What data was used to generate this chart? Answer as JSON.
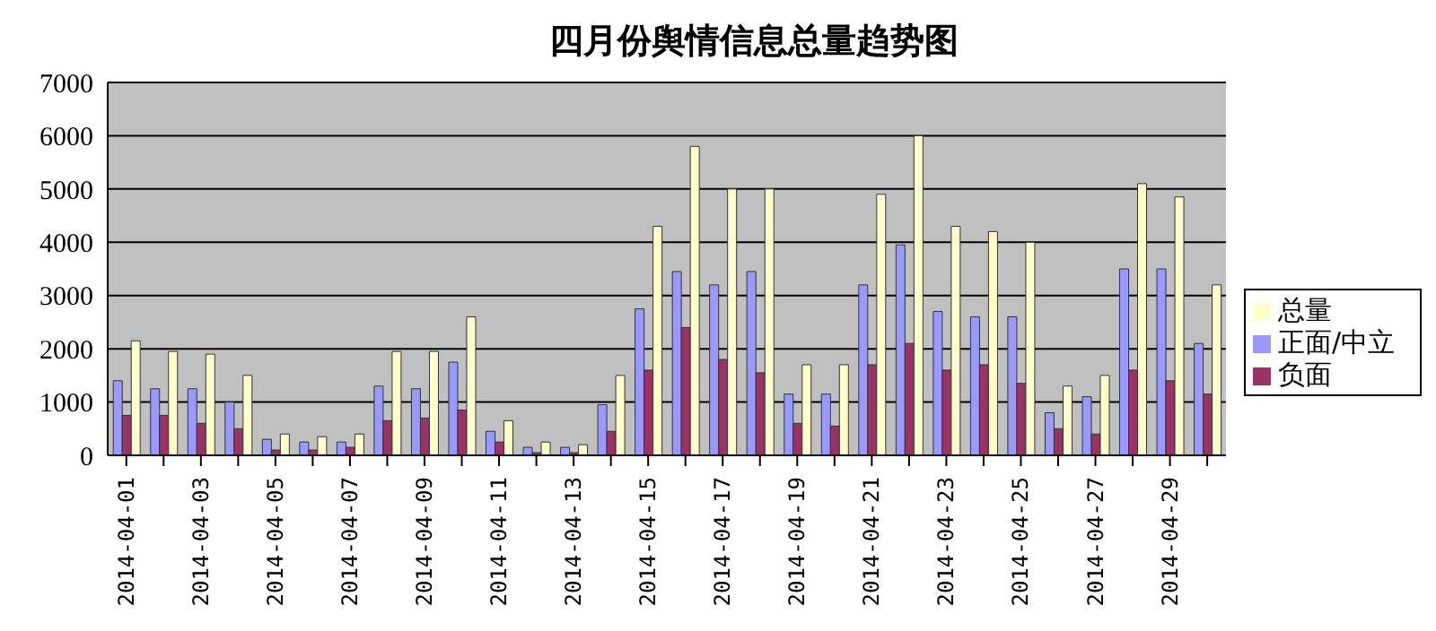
{
  "chart_data": {
    "type": "bar",
    "title": "四月份舆情信息总量趋势图",
    "categories": [
      "2014-04-01",
      null,
      "2014-04-03",
      null,
      "2014-04-05",
      null,
      "2014-04-07",
      null,
      "2014-04-09",
      null,
      "2014-04-11",
      null,
      "2014-04-13",
      null,
      "2014-04-15",
      null,
      "2014-04-17",
      null,
      "2014-04-19",
      null,
      "2014-04-21",
      null,
      "2014-04-23",
      null,
      "2014-04-25",
      null,
      "2014-04-27",
      null,
      "2014-04-29",
      null
    ],
    "series": [
      {
        "name": "正面/中立",
        "color": "#9999ff",
        "values": [
          1400,
          1250,
          1250,
          1000,
          300,
          250,
          250,
          1300,
          1250,
          1750,
          450,
          150,
          150,
          950,
          2750,
          3450,
          3200,
          3450,
          1150,
          1150,
          3200,
          3950,
          2700,
          2600,
          2600,
          800,
          1100,
          3500,
          3500,
          2100
        ]
      },
      {
        "name": "负面",
        "color": "#993366",
        "values": [
          750,
          750,
          600,
          500,
          100,
          100,
          150,
          650,
          700,
          850,
          250,
          50,
          50,
          450,
          1600,
          2400,
          1800,
          1550,
          600,
          550,
          1700,
          2100,
          1600,
          1700,
          1350,
          500,
          400,
          1600,
          1400,
          1150
        ]
      },
      {
        "name": "总量",
        "color": "#ffffcc",
        "values": [
          2150,
          1950,
          1900,
          1500,
          400,
          350,
          400,
          1950,
          1950,
          2600,
          650,
          250,
          200,
          1500,
          4300,
          5800,
          5000,
          5000,
          1700,
          1700,
          4900,
          6000,
          4300,
          4200,
          4000,
          1300,
          1500,
          5100,
          4850,
          3200
        ]
      }
    ],
    "ylim": [
      0,
      7000
    ],
    "yticks": [
      0,
      1000,
      2000,
      3000,
      4000,
      5000,
      6000,
      7000
    ],
    "grid": "y",
    "legend": "right"
  }
}
